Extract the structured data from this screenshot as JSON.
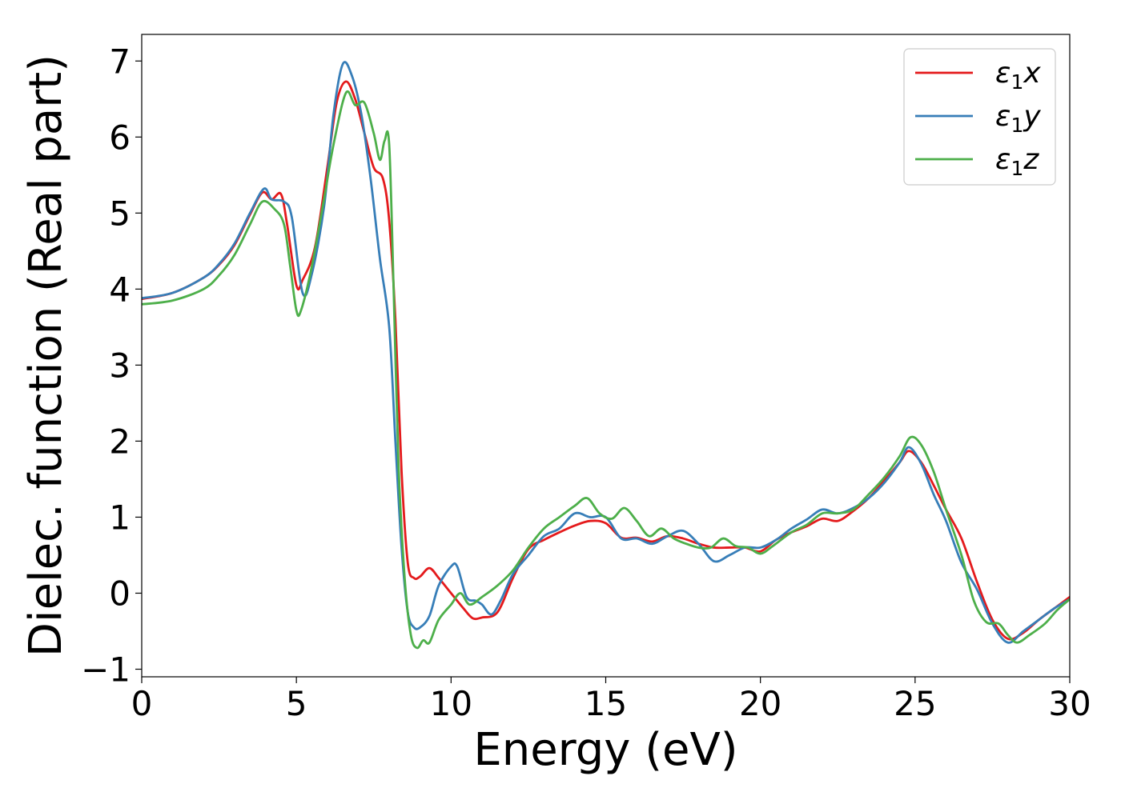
{
  "chart_data": {
    "type": "line",
    "title": "",
    "xlabel": "Energy (eV)",
    "ylabel": "Dielec. function (Real part)",
    "xlim": [
      0,
      30
    ],
    "ylim": [
      -1.1,
      7.35
    ],
    "xticks": [
      0,
      5,
      10,
      15,
      20,
      25,
      30
    ],
    "xtick_labels": [
      "0",
      "5",
      "10",
      "15",
      "20",
      "25",
      "30"
    ],
    "yticks": [
      -1,
      0,
      1,
      2,
      3,
      4,
      5,
      6,
      7
    ],
    "ytick_labels": [
      "−1",
      "0",
      "1",
      "2",
      "3",
      "4",
      "5",
      "6",
      "7"
    ],
    "grid": false,
    "legend_position": "top-right",
    "series": [
      {
        "name": "ε1x",
        "legend_base": "ε",
        "legend_sub": "1",
        "legend_suffix": "x",
        "color": "#e41a1c",
        "x": [
          0,
          1,
          2,
          2.5,
          3,
          3.5,
          3.9,
          4.2,
          4.5,
          4.7,
          5.0,
          5.2,
          5.6,
          6.0,
          6.3,
          6.6,
          6.9,
          7.2,
          7.5,
          7.8,
          8.0,
          8.2,
          8.4,
          8.6,
          8.8,
          9.0,
          9.3,
          9.6,
          10.0,
          10.4,
          10.7,
          11.0,
          11.5,
          12.0,
          12.5,
          13.0,
          13.5,
          14.0,
          14.5,
          15.0,
          15.5,
          16.0,
          16.5,
          17.0,
          17.5,
          18.0,
          18.5,
          19.0,
          19.5,
          20.0,
          20.5,
          21.0,
          21.5,
          22.0,
          22.5,
          23.0,
          23.5,
          24.0,
          24.5,
          24.8,
          25.2,
          25.6,
          26.0,
          26.5,
          27.0,
          27.5,
          28.0,
          28.5,
          29.0,
          29.5,
          30.0
        ],
        "y": [
          3.87,
          3.95,
          4.15,
          4.32,
          4.58,
          4.98,
          5.27,
          5.18,
          5.25,
          4.85,
          4.05,
          4.12,
          4.55,
          5.6,
          6.45,
          6.73,
          6.5,
          6.05,
          5.6,
          5.45,
          4.9,
          3.6,
          1.6,
          0.4,
          0.2,
          0.22,
          0.33,
          0.2,
          0.0,
          -0.2,
          -0.33,
          -0.32,
          -0.25,
          0.2,
          0.58,
          0.7,
          0.8,
          0.89,
          0.95,
          0.92,
          0.73,
          0.73,
          0.68,
          0.75,
          0.72,
          0.65,
          0.6,
          0.6,
          0.6,
          0.55,
          0.7,
          0.8,
          0.88,
          0.98,
          0.95,
          1.08,
          1.25,
          1.48,
          1.72,
          1.87,
          1.72,
          1.42,
          1.1,
          0.72,
          0.15,
          -0.35,
          -0.6,
          -0.52,
          -0.35,
          -0.2,
          -0.05
        ]
      },
      {
        "name": "ε1y",
        "legend_base": "ε",
        "legend_sub": "1",
        "legend_suffix": "y",
        "color": "#377eb8",
        "x": [
          0,
          1,
          2,
          2.5,
          3,
          3.5,
          3.95,
          4.2,
          4.6,
          4.85,
          5.2,
          5.5,
          5.9,
          6.2,
          6.5,
          6.8,
          7.1,
          7.4,
          7.7,
          8.0,
          8.2,
          8.4,
          8.6,
          8.8,
          9.0,
          9.3,
          9.6,
          10.0,
          10.2,
          10.5,
          10.8,
          11.0,
          11.3,
          11.6,
          12.0,
          12.5,
          13.0,
          13.5,
          14.0,
          14.5,
          15.0,
          15.5,
          16.0,
          16.5,
          17.0,
          17.5,
          18.0,
          18.5,
          19.0,
          19.5,
          20.0,
          20.5,
          21.0,
          21.5,
          22.0,
          22.5,
          23.0,
          23.5,
          24.0,
          24.5,
          24.8,
          25.2,
          25.6,
          26.0,
          26.5,
          27.0,
          27.5,
          28.0,
          28.5,
          29.0,
          29.5,
          30.0
        ],
        "y": [
          3.88,
          3.95,
          4.15,
          4.33,
          4.6,
          5.0,
          5.32,
          5.18,
          5.15,
          4.95,
          3.95,
          4.2,
          5.1,
          6.3,
          6.96,
          6.8,
          6.3,
          5.45,
          4.4,
          3.5,
          2.0,
          0.6,
          -0.25,
          -0.45,
          -0.45,
          -0.3,
          0.1,
          0.35,
          0.35,
          -0.05,
          -0.1,
          -0.15,
          -0.28,
          -0.1,
          0.25,
          0.5,
          0.75,
          0.85,
          1.05,
          1.0,
          1.0,
          0.72,
          0.72,
          0.65,
          0.75,
          0.82,
          0.65,
          0.42,
          0.5,
          0.6,
          0.6,
          0.7,
          0.85,
          0.97,
          1.1,
          1.05,
          1.12,
          1.25,
          1.45,
          1.72,
          1.92,
          1.7,
          1.3,
          0.95,
          0.4,
          0.05,
          -0.4,
          -0.65,
          -0.5,
          -0.35,
          -0.2,
          -0.08
        ]
      },
      {
        "name": "ε1z",
        "legend_base": "ε",
        "legend_sub": "1",
        "legend_suffix": "z",
        "color": "#4daf4a",
        "x": [
          0,
          1,
          2,
          2.5,
          3,
          3.5,
          3.9,
          4.3,
          4.6,
          4.8,
          5.0,
          5.15,
          5.5,
          5.9,
          6.2,
          6.6,
          6.9,
          7.2,
          7.5,
          7.7,
          7.85,
          8.0,
          8.15,
          8.3,
          8.5,
          8.7,
          8.9,
          9.1,
          9.3,
          9.6,
          10.0,
          10.3,
          10.6,
          11.0,
          11.5,
          12.0,
          12.5,
          13.0,
          13.5,
          14.0,
          14.4,
          14.8,
          15.2,
          15.6,
          16.0,
          16.4,
          16.8,
          17.2,
          17.6,
          18.0,
          18.4,
          18.8,
          19.2,
          19.6,
          20.0,
          20.4,
          21.0,
          21.5,
          22.0,
          22.5,
          23.0,
          23.5,
          24.0,
          24.5,
          24.85,
          25.2,
          25.6,
          26.0,
          26.5,
          26.9,
          27.3,
          27.7,
          28.0,
          28.3,
          28.7,
          29.2,
          29.6,
          30.0
        ],
        "y": [
          3.8,
          3.85,
          4.0,
          4.18,
          4.45,
          4.85,
          5.15,
          5.05,
          4.85,
          4.3,
          3.72,
          3.72,
          4.3,
          5.2,
          5.9,
          6.58,
          6.42,
          6.45,
          6.05,
          5.7,
          5.95,
          5.9,
          3.9,
          1.7,
          0.2,
          -0.55,
          -0.72,
          -0.62,
          -0.65,
          -0.35,
          -0.15,
          0.0,
          -0.15,
          -0.05,
          0.1,
          0.3,
          0.6,
          0.85,
          1.0,
          1.15,
          1.25,
          1.05,
          0.98,
          1.12,
          0.95,
          0.75,
          0.85,
          0.72,
          0.65,
          0.6,
          0.6,
          0.72,
          0.62,
          0.6,
          0.52,
          0.62,
          0.8,
          0.9,
          1.05,
          1.05,
          1.1,
          1.3,
          1.52,
          1.8,
          2.05,
          1.95,
          1.6,
          1.1,
          0.5,
          -0.1,
          -0.38,
          -0.4,
          -0.55,
          -0.65,
          -0.55,
          -0.4,
          -0.22,
          -0.08
        ]
      }
    ]
  }
}
